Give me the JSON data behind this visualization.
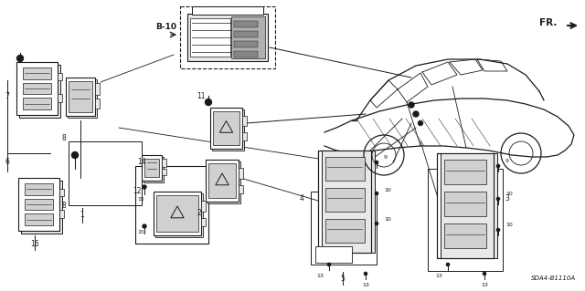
{
  "bg_color": "#ffffff",
  "line_color": "#1a1a1a",
  "part_number_label": "SDA4-B1110A",
  "figsize": [
    6.4,
    3.19
  ],
  "dpi": 100,
  "fr_text": "FR.",
  "b10_text": "B-10",
  "label_fontsize": 5.5,
  "small_fontsize": 4.5,
  "switch_fill": "#e8e8e8",
  "switch_dark": "#b0b0b0",
  "switch_mid": "#d0d0d0"
}
